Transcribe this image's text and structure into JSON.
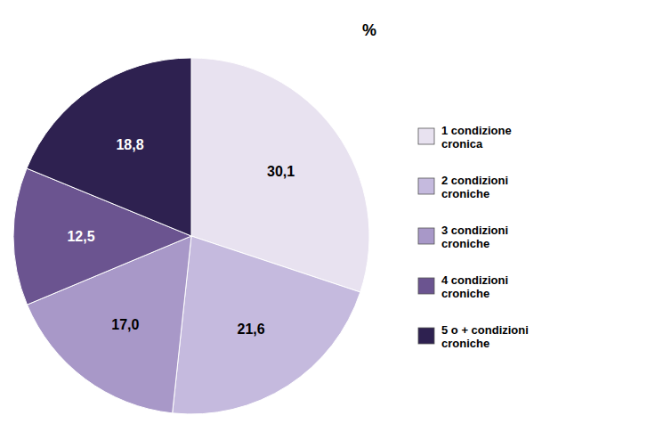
{
  "chart_data": {
    "type": "pie",
    "categories": [
      "1 condizione\ncronica",
      "2 condizioni\ncroniche",
      "3 condizioni\ncroniche",
      "4 condizioni\ncroniche",
      "5 o + condizioni\ncroniche"
    ],
    "values": [
      30.1,
      21.6,
      17.0,
      12.5,
      18.8
    ],
    "value_labels": [
      "30,1",
      "21,6",
      "17,0",
      "12,5",
      "18,8"
    ],
    "colors": [
      "#e8e2f0",
      "#c5bade",
      "#a898c8",
      "#6b5490",
      "#2e2150"
    ],
    "data_labels": true,
    "legend": "right",
    "annotations": [
      "%"
    ]
  }
}
